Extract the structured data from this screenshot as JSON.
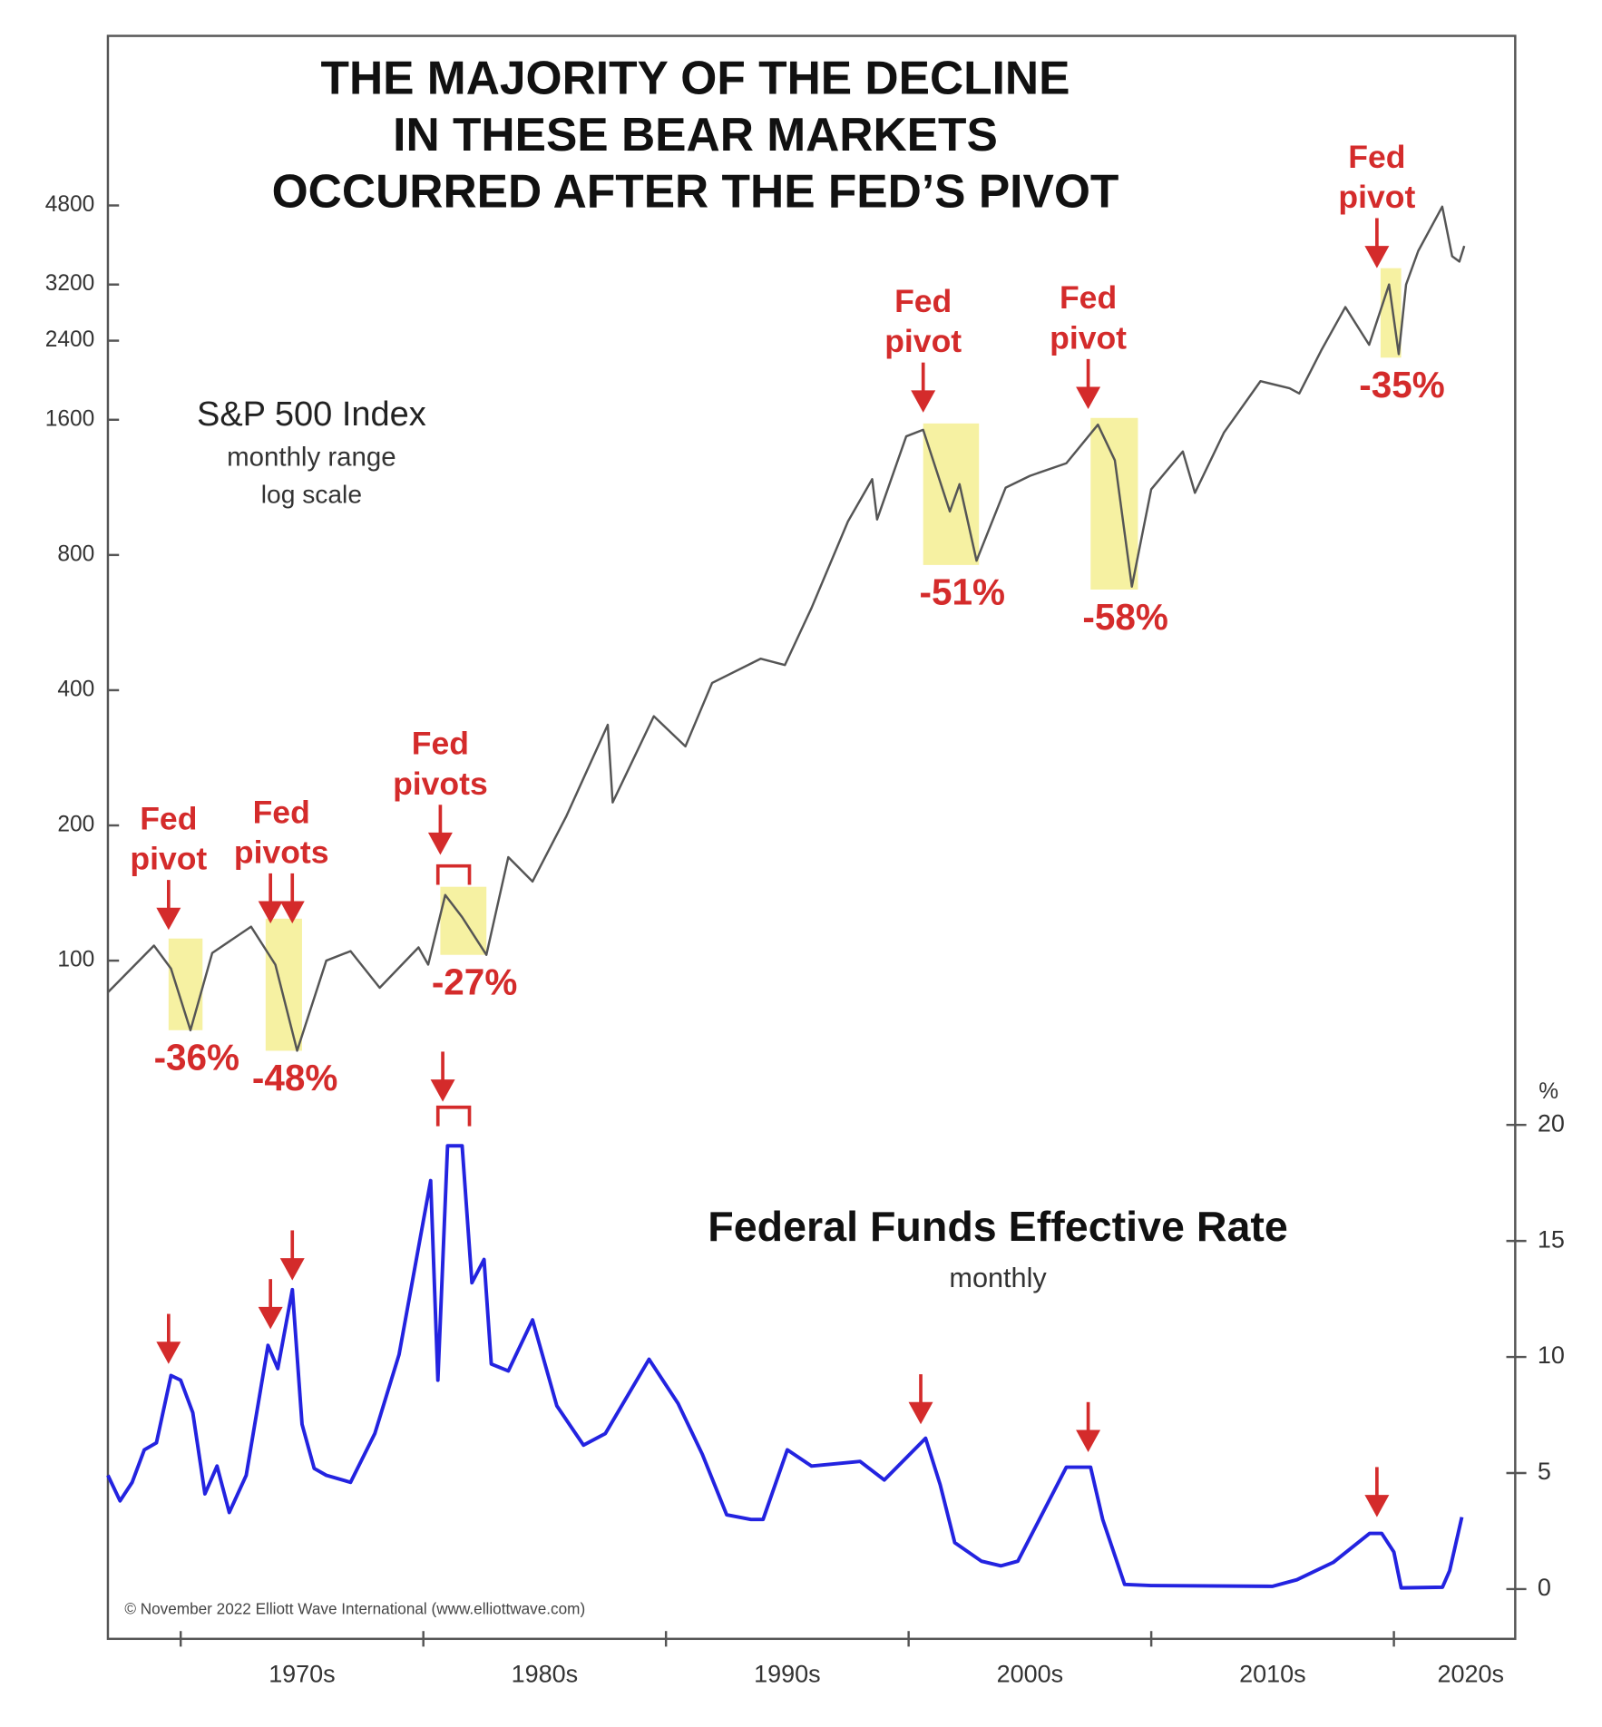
{
  "chart_data": [
    {
      "type": "line",
      "title": [
        "THE MAJORITY OF THE DECLINE",
        "IN THESE BEAR MARKETS",
        "OCCURRED AFTER THE FED’S PIVOT"
      ],
      "notes": [
        "monthly range",
        "log scale"
      ],
      "log_scale": true,
      "xlim": [
        1967,
        2025
      ],
      "ylim": [
        40,
        11000
      ],
      "yticks": [
        100,
        200,
        400,
        800,
        1600,
        2400,
        3200,
        4800
      ],
      "x": [
        1967.0,
        1968.9,
        1969.6,
        1970.4,
        1971.3,
        1972.9,
        1973.9,
        1974.8,
        1976.0,
        1977.0,
        1978.2,
        1979.8,
        1980.2,
        1980.9,
        1981.6,
        1982.6,
        1983.5,
        1984.5,
        1985.9,
        1987.6,
        1987.8,
        1989.5,
        1990.8,
        1991.9,
        1993.9,
        1994.9,
        1996.0,
        1997.5,
        1998.5,
        1998.7,
        1999.9,
        2000.6,
        2001.7,
        2002.1,
        2002.8,
        2004.0,
        2005.0,
        2006.5,
        2007.8,
        2008.5,
        2009.2,
        2010.0,
        2011.3,
        2011.8,
        2013.0,
        2014.5,
        2015.7,
        2016.1,
        2017.0,
        2018.0,
        2018.98,
        2019.8,
        2020.2,
        2020.5,
        2021.0,
        2021.99,
        2022.4,
        2022.7,
        2022.9
      ],
      "series": [
        {
          "name": "S&P 500 Index",
          "color": "#555555",
          "values": [
            85,
            108,
            96,
            70,
            104,
            119,
            98,
            63,
            100,
            105,
            87,
            107,
            98,
            140,
            125,
            103,
            170,
            150,
            210,
            335,
            225,
            350,
            300,
            415,
            470,
            455,
            610,
            950,
            1180,
            960,
            1470,
            1520,
            1000,
            1150,
            777,
            1130,
            1200,
            1280,
            1560,
            1300,
            680,
            1120,
            1360,
            1100,
            1500,
            1950,
            1880,
            1830,
            2280,
            2850,
            2350,
            3200,
            2240,
            3200,
            3800,
            4770,
            3700,
            3600,
            3900
          ]
        }
      ],
      "highlight_color": "#f6f1a2",
      "annotation_color": "#d42b2b",
      "pivots": [
        {
          "text": [
            "Fed",
            "pivot"
          ],
          "arrows": [
            1969.5
          ],
          "tip": 117
        },
        {
          "text": [
            "Fed",
            "pivots"
          ],
          "arrows": [
            1973.7,
            1974.6
          ],
          "tip": 121
        },
        {
          "text": [
            "Fed",
            "pivots"
          ],
          "arrows": [
            1980.7
          ],
          "tip": 172,
          "bracket": [
            1980.6,
            1981.9
          ]
        },
        {
          "text": [
            "Fed",
            "pivot"
          ],
          "arrows": [
            2000.6
          ],
          "tip": 1660
        },
        {
          "text": [
            "Fed",
            "pivot"
          ],
          "arrows": [
            2007.4
          ],
          "tip": 1690
        },
        {
          "text": [
            "Fed",
            "pivot"
          ],
          "arrows": [
            2019.3
          ],
          "tip": 3480
        }
      ],
      "bear_markets": [
        {
          "start": 1969.5,
          "end": 1970.9,
          "high": 112,
          "low": 70,
          "label": "-36%"
        },
        {
          "start": 1973.5,
          "end": 1975.0,
          "high": 124,
          "low": 63,
          "label": "-48%"
        },
        {
          "start": 1980.7,
          "end": 1982.6,
          "high": 146,
          "low": 103,
          "label": "-27%"
        },
        {
          "start": 2000.6,
          "end": 2002.9,
          "high": 1570,
          "low": 760,
          "label": "-51%"
        },
        {
          "start": 2007.5,
          "end": 2009.45,
          "high": 1615,
          "low": 670,
          "label": "-58%"
        },
        {
          "start": 2019.45,
          "end": 2020.3,
          "high": 3480,
          "low": 2200,
          "label": "-35%"
        }
      ]
    },
    {
      "type": "line",
      "subtitle": "monthly",
      "y_unit": "%",
      "credit": "© November 2022 Elliott Wave International (www.elliottwave.com)",
      "xlim": [
        1967,
        2025
      ],
      "xticks": [
        {
          "value": 1970,
          "label": "1970s"
        },
        {
          "value": 1980,
          "label": "1980s"
        },
        {
          "value": 1990,
          "label": "1990s"
        },
        {
          "value": 2000,
          "label": "2000s"
        },
        {
          "value": 2010,
          "label": "2010s"
        },
        {
          "value": 2020,
          "label": "2020s"
        }
      ],
      "ylim": [
        -2,
        20
      ],
      "yticks": [
        0,
        5,
        10,
        15,
        20
      ],
      "x": [
        1967.0,
        1967.5,
        1968.0,
        1968.5,
        1969.0,
        1969.6,
        1970.0,
        1970.5,
        1971.0,
        1971.5,
        1972.0,
        1972.7,
        1973.6,
        1974.0,
        1974.6,
        1975.0,
        1975.5,
        1976.0,
        1977.0,
        1978.0,
        1979.0,
        1980.3,
        1980.6,
        1981.0,
        1981.6,
        1982.0,
        1982.5,
        1982.8,
        1983.5,
        1984.5,
        1985.5,
        1986.6,
        1987.5,
        1989.3,
        1990.5,
        1991.5,
        1992.5,
        1993.5,
        1994.0,
        1995.0,
        1996.0,
        1998.0,
        1999.0,
        2000.7,
        2001.3,
        2001.9,
        2003.0,
        2003.8,
        2004.5,
        2006.5,
        2007.5,
        2008.0,
        2008.9,
        2010.0,
        2015.0,
        2016.0,
        2017.5,
        2019.0,
        2019.5,
        2020.0,
        2020.3,
        2022.0,
        2022.3,
        2022.8
      ],
      "series": [
        {
          "name": "Federal Funds Effective Rate",
          "color": "#2323e0",
          "values": [
            4.9,
            3.8,
            4.6,
            6.0,
            6.3,
            9.2,
            9.0,
            7.6,
            4.1,
            5.3,
            3.3,
            4.9,
            10.5,
            9.5,
            12.9,
            7.1,
            5.2,
            4.9,
            4.6,
            6.7,
            10.1,
            17.6,
            9.0,
            19.1,
            19.1,
            13.2,
            14.2,
            9.7,
            9.4,
            11.6,
            7.9,
            6.2,
            6.7,
            9.9,
            8.0,
            5.8,
            3.2,
            3.0,
            3.0,
            6.0,
            5.3,
            5.5,
            4.7,
            6.5,
            4.5,
            2.0,
            1.2,
            1.0,
            1.2,
            5.25,
            5.25,
            3.0,
            0.2,
            0.15,
            0.12,
            0.4,
            1.15,
            2.4,
            2.4,
            1.6,
            0.05,
            0.08,
            0.8,
            3.1
          ]
        }
      ],
      "pivot_arrows": [
        {
          "x": 1969.5,
          "tip": 9.7
        },
        {
          "x": 1973.7,
          "tip": 11.2
        },
        {
          "x": 1974.6,
          "tip": 13.3
        },
        {
          "x": 1980.8,
          "tip": 21.0,
          "bracket": [
            1980.6,
            1981.9
          ]
        },
        {
          "x": 2000.5,
          "tip": 7.1
        },
        {
          "x": 2007.4,
          "tip": 5.9
        },
        {
          "x": 2019.3,
          "tip": 3.1
        }
      ]
    }
  ]
}
